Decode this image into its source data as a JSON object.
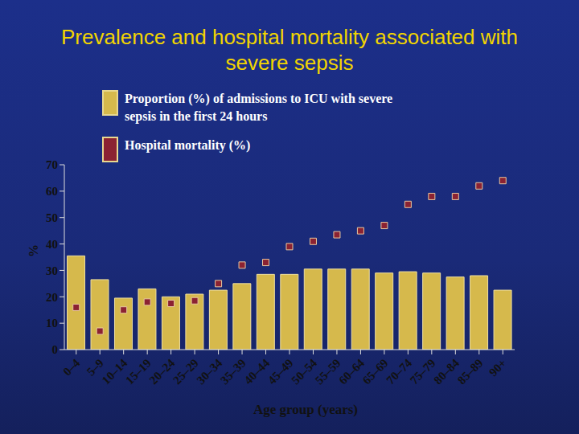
{
  "chart_data": {
    "type": "bar",
    "title": "Prevalence and hospital mortality associated with severe sepsis",
    "x_label": "Age group (years)",
    "y_label": "%",
    "categories": [
      "0–4",
      "5–9",
      "10–14",
      "15–19",
      "20–24",
      "25–29",
      "30–34",
      "35–39",
      "40–44",
      "45–49",
      "50–54",
      "55–59",
      "60–64",
      "65–69",
      "70–74",
      "75–79",
      "80–84",
      "85–89",
      "90+"
    ],
    "series": [
      {
        "name": "Proportion (%) of admissions to ICU with severe sepsis in the first 24 hours",
        "type": "bar",
        "color": "#d6b94c",
        "values": [
          35.5,
          26.5,
          19.5,
          23,
          20,
          21,
          22.5,
          25,
          28.5,
          28.5,
          30.5,
          30.5,
          30.5,
          29,
          29.5,
          29,
          27.5,
          28,
          22.5
        ]
      },
      {
        "name": "Hospital mortality (%)",
        "type": "scatter",
        "marker": "square",
        "color": "#8b2232",
        "values": [
          16,
          7,
          15,
          18,
          17.5,
          18.5,
          25,
          32,
          33,
          39,
          41,
          43.5,
          45,
          47,
          55,
          58,
          58,
          62,
          64
        ]
      }
    ],
    "ylim": [
      0,
      70
    ],
    "yticks": [
      0,
      10,
      20,
      30,
      40,
      50,
      60,
      70
    ],
    "grid": false,
    "legend": "top"
  }
}
